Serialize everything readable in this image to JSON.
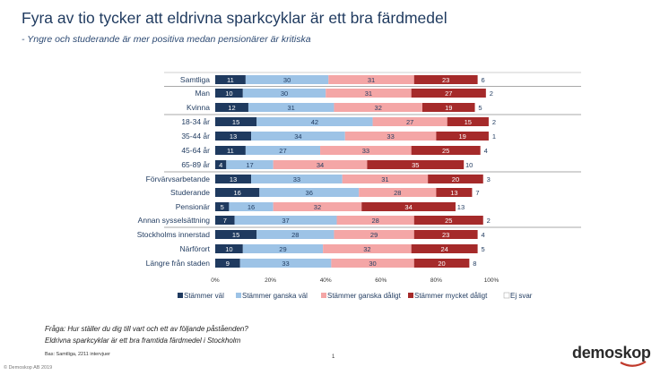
{
  "title": "Fyra av tio tycker att eldrivna sparkcyklar är ett bra färdmedel",
  "subtitle": "- Yngre och studerande är mer positiva medan pensionärer är kritiska",
  "footnote_line1": "Fråga: Hur ställer du dig till vart och ett av följande påståenden?",
  "footnote_line2": "Eldrivna sparkcyklar är ett bra framtida färdmedel i Stockholm",
  "source": "Bas: Samtliga, 2211 intervjuer",
  "page_number": "1",
  "copyright": "© Demoskop AB 2019",
  "logo": "demoskop",
  "colors": {
    "stammer_val": "#1f3a5f",
    "stammer_ganska_val": "#9dc3e6",
    "stammer_ganska_daligt": "#f4a6a6",
    "stammer_mycket_daligt": "#a52a2a",
    "ej_svar": "#ffffff",
    "logo_accent": "#c0392b"
  },
  "chart_data": {
    "type": "bar",
    "orientation": "horizontal",
    "stacked": true,
    "xlim": [
      0,
      100
    ],
    "x_ticks": [
      "0%",
      "20%",
      "40%",
      "60%",
      "80%",
      "100%"
    ],
    "legend_position": "bottom",
    "categories": [
      "Samtliga",
      "Man",
      "Kvinna",
      "18-34 år",
      "35-44 år",
      "45-64 år",
      "65-89 år",
      "Förvärvsarbetande",
      "Studerande",
      "Pensionär",
      "Annan sysselsättning",
      "Stockholms innerstad",
      "Närförort",
      "Längre från staden"
    ],
    "groups": [
      [
        0
      ],
      [
        1,
        2
      ],
      [
        3,
        4,
        5,
        6
      ],
      [
        7,
        8,
        9,
        10
      ],
      [
        11,
        12,
        13
      ]
    ],
    "series": [
      {
        "name": "Stämmer väl",
        "values": [
          11,
          10,
          12,
          15,
          13,
          11,
          4,
          13,
          16,
          5,
          7,
          15,
          10,
          9
        ]
      },
      {
        "name": "Stämmer ganska väl",
        "values": [
          30,
          30,
          31,
          42,
          34,
          27,
          17,
          33,
          36,
          16,
          37,
          28,
          29,
          33
        ]
      },
      {
        "name": "Stämmer ganska dåligt",
        "values": [
          31,
          31,
          32,
          27,
          33,
          33,
          34,
          31,
          28,
          32,
          28,
          29,
          32,
          30
        ]
      },
      {
        "name": "Stämmer mycket dåligt",
        "values": [
          23,
          27,
          19,
          15,
          19,
          25,
          35,
          20,
          13,
          34,
          25,
          23,
          24,
          20
        ]
      },
      {
        "name": "Ej svar",
        "values": [
          6,
          2,
          5,
          2,
          1,
          4,
          10,
          3,
          7,
          13,
          2,
          4,
          5,
          8
        ]
      }
    ]
  }
}
